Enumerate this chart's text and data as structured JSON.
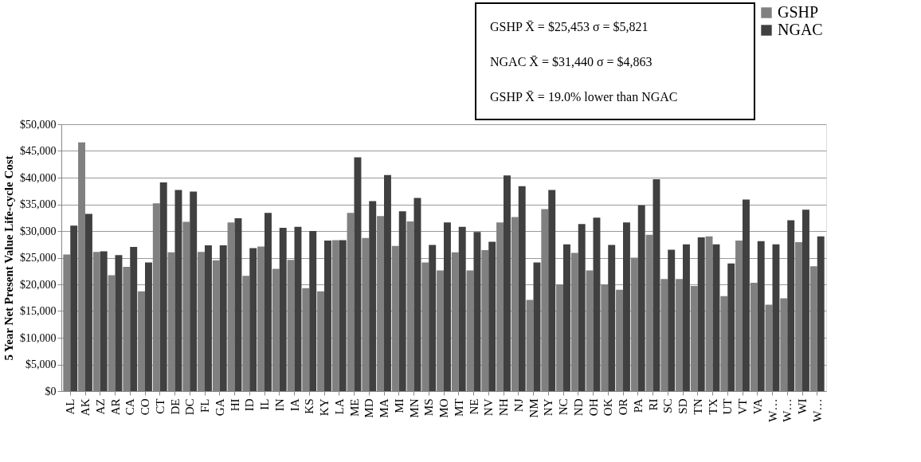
{
  "chart_data": {
    "type": "bar",
    "ylabel": "5 Year Net Present Value Life-cycle Cost",
    "categories": [
      "AL",
      "AK",
      "AZ",
      "AR",
      "CA",
      "CO",
      "CT",
      "DE",
      "DC",
      "FL",
      "GA",
      "HI",
      "ID",
      "IL",
      "IN",
      "IA",
      "KS",
      "KY",
      "LA",
      "ME",
      "MD",
      "MA",
      "MI",
      "MN",
      "MS",
      "MO",
      "MT",
      "NE",
      "NV",
      "NH",
      "NJ",
      "NM",
      "NY",
      "NC",
      "ND",
      "OH",
      "OK",
      "OR",
      "PA",
      "RI",
      "SC",
      "SD",
      "TN",
      "TX",
      "UT",
      "VT",
      "VA",
      "W…",
      "W…",
      "WI",
      "W…"
    ],
    "series": [
      {
        "name": "GSHP",
        "color": "#808080",
        "values": [
          25600,
          46600,
          26100,
          21700,
          23300,
          18700,
          35200,
          26000,
          31700,
          26100,
          24500,
          31600,
          21600,
          27100,
          22900,
          24600,
          19300,
          18700,
          28300,
          33400,
          28700,
          32800,
          27200,
          31800,
          24100,
          22600,
          26000,
          22600,
          26400,
          31600,
          32600,
          17100,
          34100,
          20000,
          25900,
          22600,
          20000,
          19000,
          25000,
          29300,
          21000,
          21000,
          19700,
          29000,
          17800,
          28200,
          20300,
          16200,
          17400,
          27900,
          23400
        ]
      },
      {
        "name": "NGAC",
        "color": "#404040",
        "values": [
          31000,
          33200,
          26200,
          25500,
          27000,
          24100,
          39100,
          37700,
          37400,
          27300,
          27300,
          32400,
          26800,
          33400,
          30600,
          30800,
          30000,
          28200,
          28300,
          43800,
          35600,
          40500,
          33700,
          36200,
          27400,
          31600,
          30800,
          29800,
          28000,
          40400,
          38400,
          24100,
          37700,
          27500,
          31300,
          32500,
          27400,
          31600,
          34800,
          39700,
          26500,
          27500,
          28800,
          27500,
          23900,
          35900,
          28100,
          27500,
          32000,
          34000,
          29000
        ]
      }
    ],
    "ylim": [
      0,
      50000
    ],
    "yticks": [
      {
        "value": 0,
        "label": "$0"
      },
      {
        "value": 5000,
        "label": "$5,000"
      },
      {
        "value": 10000,
        "label": "$10,000"
      },
      {
        "value": 15000,
        "label": "$15,000"
      },
      {
        "value": 20000,
        "label": "$20,000"
      },
      {
        "value": 25000,
        "label": "$25,000"
      },
      {
        "value": 30000,
        "label": "$30,000"
      },
      {
        "value": 35000,
        "label": "$35,000"
      },
      {
        "value": 40000,
        "label": "$40,000"
      },
      {
        "value": 45000,
        "label": "$45,000"
      },
      {
        "value": 50000,
        "label": "$50,000"
      }
    ],
    "grid": "y",
    "legend": "top right",
    "annotations": [
      "GSHP X̄ = $25,453  σ = $5,821",
      "NGAC X̄ = $31,440  σ = $4,863",
      "GSHP X̄ =  19.0% lower than NGAC"
    ]
  }
}
